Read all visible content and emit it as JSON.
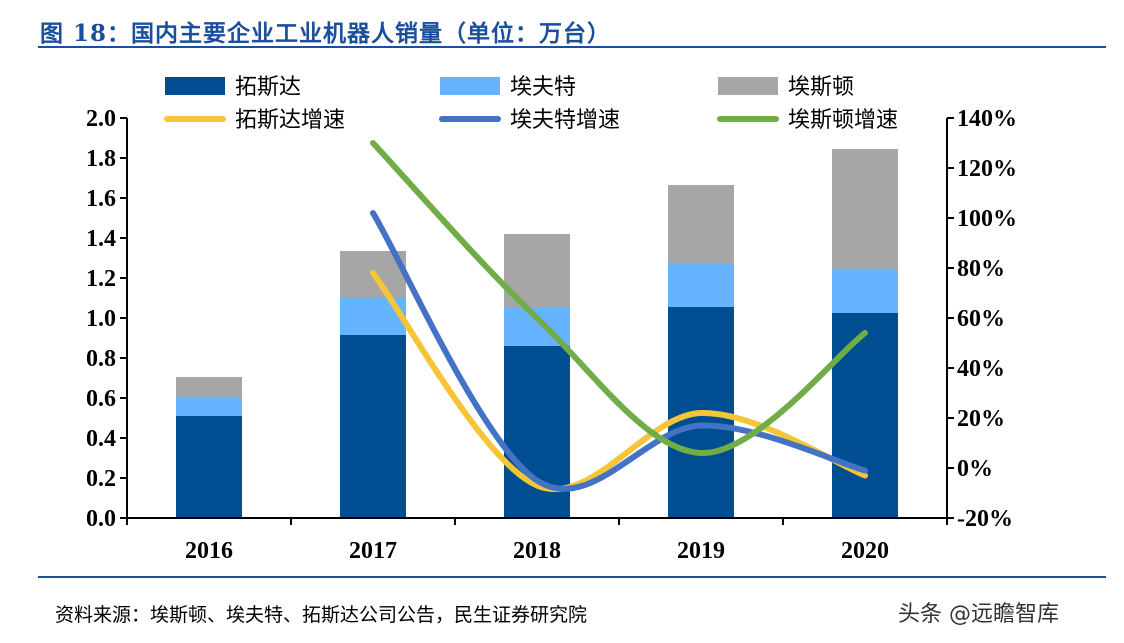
{
  "title": "图 18：国内主要企业工业机器人销量（单位：万台）",
  "source": "资料来源：埃斯顿、埃夫特、拓斯达公司公告，民生证券研究院",
  "watermark": "头条 @远瞻智库",
  "chart_data": {
    "type": "bar",
    "stacked": true,
    "categories": [
      "2016",
      "2017",
      "2018",
      "2019",
      "2020"
    ],
    "series": [
      {
        "name": "拓斯达",
        "type": "bar",
        "axis": "left",
        "color": "#004e92",
        "values": [
          0.51,
          0.915,
          0.86,
          1.055,
          1.025
        ]
      },
      {
        "name": "埃夫特",
        "type": "bar",
        "axis": "left",
        "color": "#66b3ff",
        "values": [
          0.09,
          0.19,
          0.19,
          0.22,
          0.215
        ]
      },
      {
        "name": "埃斯顿",
        "type": "bar",
        "axis": "left",
        "color": "#a6a6a6",
        "values": [
          0.105,
          0.23,
          0.37,
          0.39,
          0.605
        ]
      },
      {
        "name": "拓斯达增速",
        "type": "line",
        "axis": "right",
        "color": "#f5c537",
        "values": [
          null,
          78,
          -7,
          22,
          -3
        ]
      },
      {
        "name": "埃夫特增速",
        "type": "line",
        "axis": "right",
        "color": "#4472c4",
        "values": [
          null,
          102,
          -5,
          17,
          -1
        ]
      },
      {
        "name": "埃斯顿增速",
        "type": "line",
        "axis": "right",
        "color": "#70ad47",
        "values": [
          null,
          130,
          60,
          6,
          54
        ]
      }
    ],
    "ylim_left": [
      0,
      2.0
    ],
    "yticks_left": [
      "0.0",
      "0.2",
      "0.4",
      "0.6",
      "0.8",
      "1.0",
      "1.2",
      "1.4",
      "1.6",
      "1.8",
      "2.0"
    ],
    "ylim_right": [
      -20,
      140
    ],
    "yticks_right": [
      "-20%",
      "0%",
      "20%",
      "40%",
      "60%",
      "80%",
      "100%",
      "120%",
      "140%"
    ],
    "grid": false,
    "legend": "top"
  }
}
